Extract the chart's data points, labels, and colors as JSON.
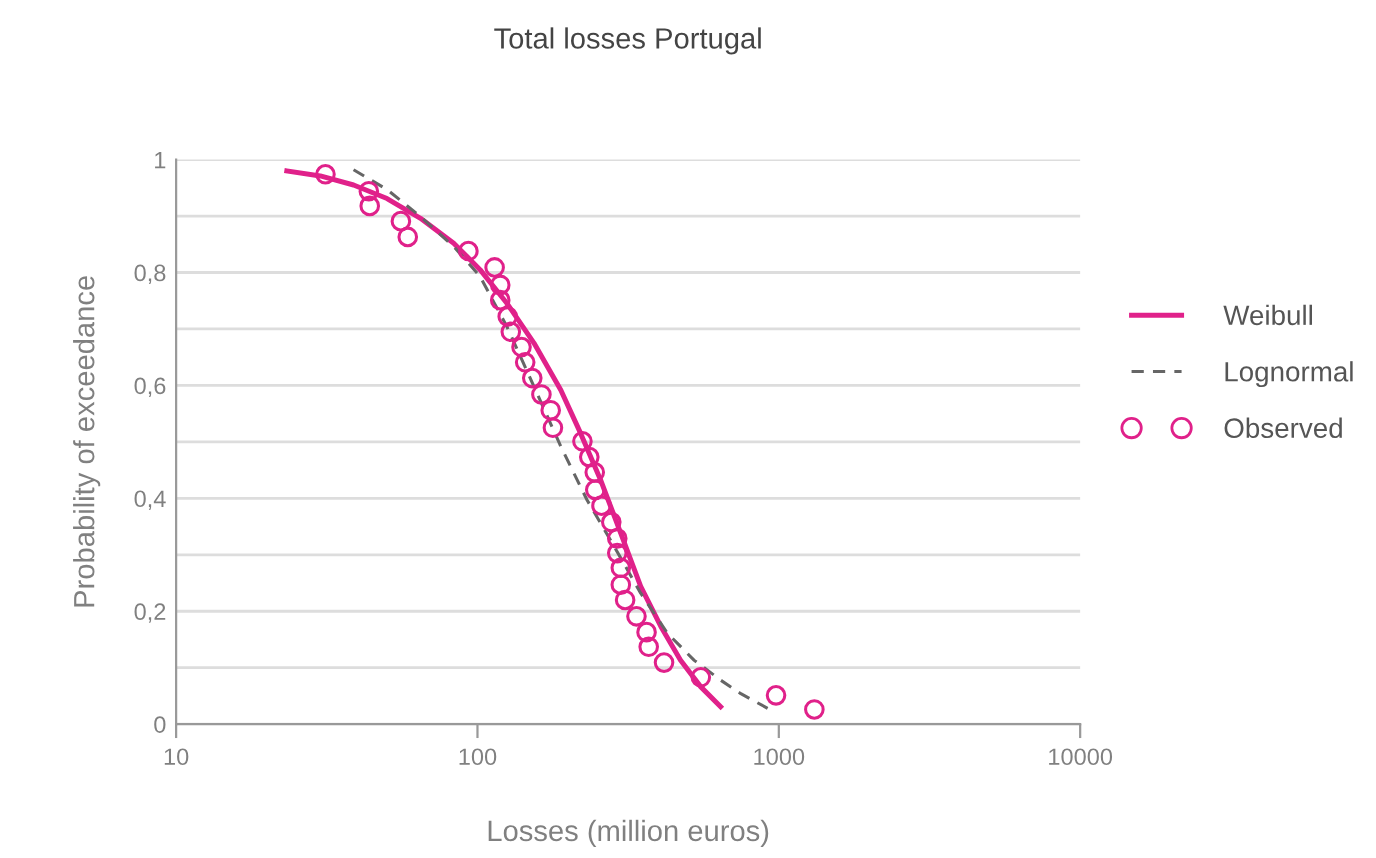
{
  "chart_data": {
    "type": "line",
    "title": "Total losses Portugal",
    "xlabel": "Losses (million euros)",
    "ylabel": "Probability of exceedance",
    "log": "x",
    "xlim": [
      10,
      10000
    ],
    "xticks": [
      10,
      100,
      1000,
      10000
    ],
    "ylim": [
      0,
      1
    ],
    "yticks": [
      0,
      {
        "value": 0.1,
        "label": null
      },
      {
        "value": 0.2,
        "label": "0,2"
      },
      {
        "value": 0.3,
        "label": null
      },
      {
        "value": 0.4,
        "label": "0,4"
      },
      {
        "value": 0.5,
        "label": null
      },
      {
        "value": 0.6,
        "label": "0,6"
      },
      {
        "value": 0.7,
        "label": null
      },
      {
        "value": 0.8,
        "label": "0,8"
      },
      {
        "value": 0.9,
        "label": null
      },
      1
    ],
    "grid": "y",
    "legend": "right",
    "series": [
      {
        "name": "Weibull",
        "color": "#e0218a",
        "line_style": "solid",
        "marker": "none",
        "x": [
          23.3,
          30.1,
          38.8,
          50.1,
          64.7,
          83.4,
          102,
          125,
          154,
          189,
          220,
          256,
          299,
          348,
          406,
          472,
          551,
          641
        ],
        "values": [
          0.98,
          0.971,
          0.955,
          0.931,
          0.896,
          0.852,
          0.805,
          0.746,
          0.675,
          0.592,
          0.515,
          0.433,
          0.338,
          0.244,
          0.173,
          0.113,
          0.066,
          0.031
        ]
      },
      {
        "name": "Lognormal",
        "color": "#666666",
        "line_style": "dashed",
        "marker": "none",
        "x": [
          38.8,
          50.1,
          64.7,
          83.4,
          102,
          125,
          154,
          189,
          231,
          284,
          348,
          427,
          524,
          641,
          748,
          918
        ],
        "values": [
          0.982,
          0.947,
          0.899,
          0.846,
          0.793,
          0.705,
          0.598,
          0.492,
          0.397,
          0.315,
          0.232,
          0.161,
          0.113,
          0.078,
          0.054,
          0.028
        ]
      },
      {
        "name": "Observed",
        "type": "scatter",
        "color": "#e0218a",
        "marker": "circle",
        "x": [
          31.3,
          43.6,
          43.9,
          55.7,
          58.7,
          93.3,
          114,
          119,
          119,
          126,
          129,
          140,
          144,
          152,
          163,
          175,
          178,
          223,
          235,
          245,
          246,
          258,
          278,
          291,
          291,
          299,
          299,
          309,
          337,
          364,
          370,
          416,
          551,
          979,
          1312
        ],
        "values": [
          0.974,
          0.944,
          0.918,
          0.891,
          0.863,
          0.838,
          0.809,
          0.778,
          0.751,
          0.722,
          0.695,
          0.668,
          0.641,
          0.613,
          0.584,
          0.556,
          0.525,
          0.501,
          0.473,
          0.446,
          0.415,
          0.387,
          0.358,
          0.329,
          0.303,
          0.277,
          0.247,
          0.22,
          0.191,
          0.163,
          0.137,
          0.109,
          0.083,
          0.051,
          0.026
        ]
      }
    ]
  }
}
